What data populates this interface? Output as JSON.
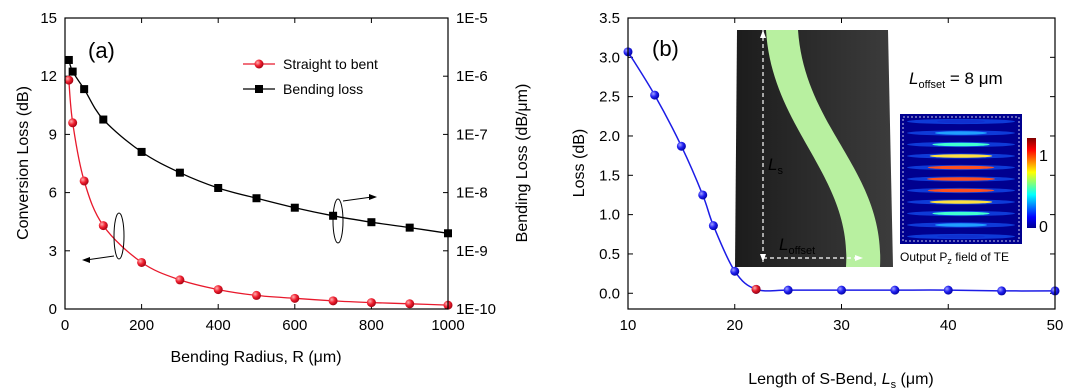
{
  "chart_data": [
    {
      "panel_label": "(a)",
      "type": "line",
      "xlabel": "Bending Radius, R (μm)",
      "ylabel_left": "Conversion Loss (dB)",
      "ylabel_right": "Bending Loss (dB/μm)",
      "xlim": [
        0,
        1000
      ],
      "ylim_left": [
        0,
        15
      ],
      "ylim_right": [
        1e-10,
        1e-05
      ],
      "right_scale": "log",
      "x_ticks": [
        "0",
        "200",
        "400",
        "600",
        "800",
        "1000"
      ],
      "y_ticks_left": [
        "0",
        "3",
        "6",
        "9",
        "12",
        "15"
      ],
      "y_ticks_right": [
        "1E-10",
        "1E-9",
        "1E-8",
        "1E-7",
        "1E-6",
        "1E-5"
      ],
      "legend_position": "top-right",
      "series": [
        {
          "name": "Straight to bent",
          "color": "#e8192c",
          "marker": "circle",
          "axis": "left",
          "x": [
            10,
            20,
            50,
            100,
            200,
            300,
            400,
            500,
            600,
            700,
            800,
            900,
            1000
          ],
          "y": [
            11.8,
            9.6,
            6.6,
            4.3,
            2.4,
            1.5,
            1.0,
            0.7,
            0.55,
            0.42,
            0.33,
            0.27,
            0.2
          ]
        },
        {
          "name": "Bending loss",
          "color": "#000000",
          "marker": "square",
          "axis": "right",
          "x": [
            10,
            20,
            50,
            100,
            200,
            300,
            400,
            500,
            600,
            700,
            800,
            900,
            1000
          ],
          "y": [
            1.9e-06,
            1.2e-06,
            6e-07,
            1.8e-07,
            5e-08,
            2.2e-08,
            1.2e-08,
            8e-09,
            5.5e-09,
            4e-09,
            3.1e-09,
            2.5e-09,
            2e-09
          ]
        }
      ]
    },
    {
      "panel_label": "(b)",
      "type": "line",
      "xlabel_prefix": "Length of S-Bend, ",
      "xlabel_sym": "L",
      "xlabel_sub": "s",
      "xlabel_suffix": " (μm)",
      "ylabel": "Loss (dB)",
      "xlim": [
        10,
        50
      ],
      "ylim": [
        -0.2,
        3.5
      ],
      "x_ticks": [
        "10",
        "20",
        "30",
        "40",
        "50"
      ],
      "y_ticks": [
        "0.0",
        "0.5",
        "1.0",
        "1.5",
        "2.0",
        "2.5",
        "3.0",
        "3.5"
      ],
      "series": [
        {
          "color": "#1c1ce6",
          "marker": "circle",
          "x": [
            10,
            12.5,
            15,
            17,
            18,
            20,
            22,
            25,
            30,
            35,
            40,
            45,
            50
          ],
          "y": [
            3.07,
            2.52,
            1.87,
            1.25,
            0.86,
            0.28,
            0.05,
            0.04,
            0.04,
            0.04,
            0.04,
            0.03,
            0.03
          ]
        }
      ],
      "highlight_point": {
        "x": 22,
        "y": 0.05,
        "color": "#e8192c"
      },
      "inset": {
        "offset_sym": "L",
        "offset_sub": "offset",
        "offset_value": " = 8 μm",
        "ls_sym": "L",
        "ls_sub": "s",
        "loffset_sym": "L",
        "loffset_sub": "offset",
        "field_caption_a": "Output P",
        "field_caption_sub": "z",
        "field_caption_b": " field of TE",
        "colorbar_max": "1",
        "colorbar_min": "0",
        "waveguide_color": "#b8f0a0",
        "background_color": "#303030"
      }
    }
  ]
}
